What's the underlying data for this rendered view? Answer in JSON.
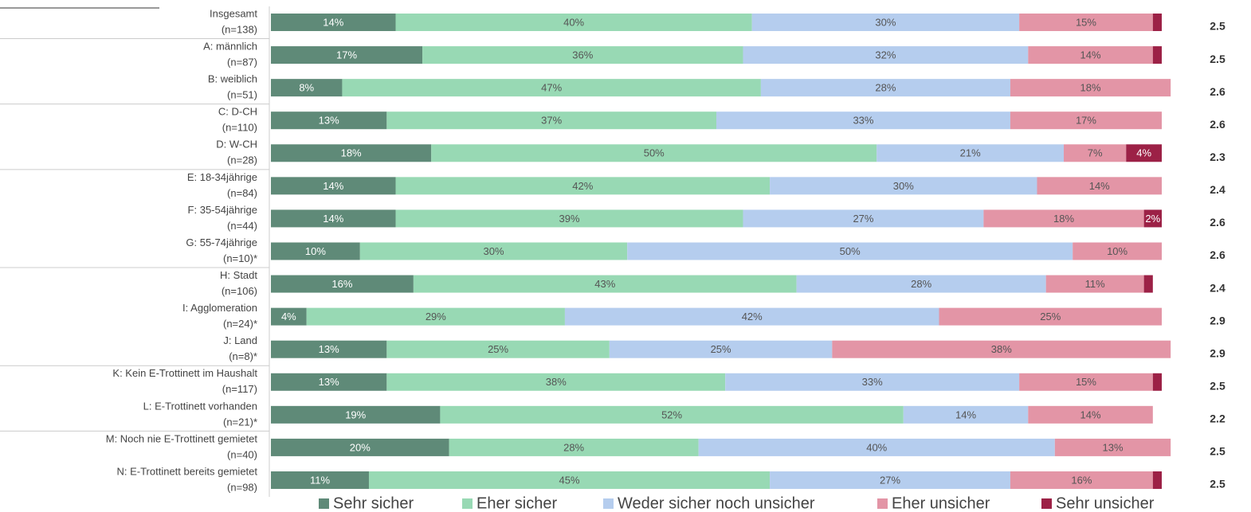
{
  "chart_data": {
    "type": "stacked_bar_horizontal",
    "categories": [
      [
        "Insgesamt",
        "(n=138)"
      ],
      [
        "A: männlich",
        "(n=87)"
      ],
      [
        "B: weiblich",
        "(n=51)"
      ],
      [
        "C: D-CH",
        "(n=110)"
      ],
      [
        "D: W-CH",
        "(n=28)"
      ],
      [
        "E: 18-34jährige",
        "(n=84)"
      ],
      [
        "F: 35-54jährige",
        "(n=44)"
      ],
      [
        "G: 55-74jährige",
        "(n=10)*"
      ],
      [
        "H: Stadt",
        "(n=106)"
      ],
      [
        "I: Agglomeration",
        "(n=24)*"
      ],
      [
        "J: Land",
        "(n=8)*"
      ],
      [
        "K: Kein E-Trottinett im Haushalt",
        "(n=117)"
      ],
      [
        "L: E-Trottinett vorhanden",
        "(n=21)*"
      ],
      [
        "M: Noch nie E-Trottinett gemietet",
        "(n=40)"
      ],
      [
        "N: E-Trottinett bereits gemietet",
        "(n=98)"
      ]
    ],
    "xlim": [
      0,
      100
    ],
    "series": [
      {
        "name": "Sehr sicher",
        "color": "#5f8a78",
        "label_color": "#ffffff",
        "values": [
          14,
          17,
          8,
          13,
          18,
          14,
          14,
          10,
          16,
          4,
          13,
          13,
          19,
          20,
          11
        ],
        "value_labels": [
          "14%",
          "17%",
          "8%",
          "13%",
          "18%",
          "14%",
          "14%",
          "10%",
          "16%",
          "4%",
          "13%",
          "13%",
          "19%",
          "20%",
          "11%"
        ]
      },
      {
        "name": "Eher sicher",
        "color": "#98d9b4",
        "label_color": "#555555",
        "values": [
          40,
          36,
          47,
          37,
          50,
          42,
          39,
          30,
          43,
          29,
          25,
          38,
          52,
          28,
          45
        ],
        "value_labels": [
          "40%",
          "36%",
          "47%",
          "37%",
          "50%",
          "42%",
          "39%",
          "30%",
          "43%",
          "29%",
          "25%",
          "38%",
          "52%",
          "28%",
          "45%"
        ]
      },
      {
        "name": "Weder sicher noch unsicher",
        "color": "#b5cdee",
        "label_color": "#555555",
        "values": [
          30,
          32,
          28,
          33,
          21,
          30,
          27,
          50,
          28,
          42,
          25,
          33,
          14,
          40,
          27
        ],
        "value_labels": [
          "30%",
          "32%",
          "28%",
          "33%",
          "21%",
          "30%",
          "27%",
          "50%",
          "28%",
          "42%",
          "25%",
          "33%",
          "14%",
          "40%",
          "27%"
        ]
      },
      {
        "name": "Eher unsicher",
        "color": "#e395a6",
        "label_color": "#555555",
        "values": [
          15,
          14,
          18,
          17,
          7,
          14,
          18,
          10,
          11,
          25,
          38,
          15,
          14,
          13,
          16
        ],
        "value_labels": [
          "15%",
          "14%",
          "18%",
          "17%",
          "7%",
          "14%",
          "18%",
          "10%",
          "11%",
          "25%",
          "38%",
          "15%",
          "14%",
          "13%",
          "16%"
        ]
      },
      {
        "name": "Sehr unsicher",
        "color": "#9c2146",
        "label_color": "#ffffff",
        "values": [
          1,
          1,
          null,
          null,
          4,
          null,
          2,
          null,
          1,
          null,
          null,
          1,
          null,
          null,
          1
        ],
        "value_labels": [
          null,
          null,
          null,
          null,
          "4%",
          null,
          "2%",
          null,
          null,
          null,
          null,
          null,
          null,
          null,
          null
        ]
      }
    ],
    "means": [
      2.5,
      2.5,
      2.6,
      2.6,
      2.3,
      2.4,
      2.6,
      2.6,
      2.4,
      2.9,
      2.9,
      2.5,
      2.2,
      2.5,
      2.5
    ]
  }
}
